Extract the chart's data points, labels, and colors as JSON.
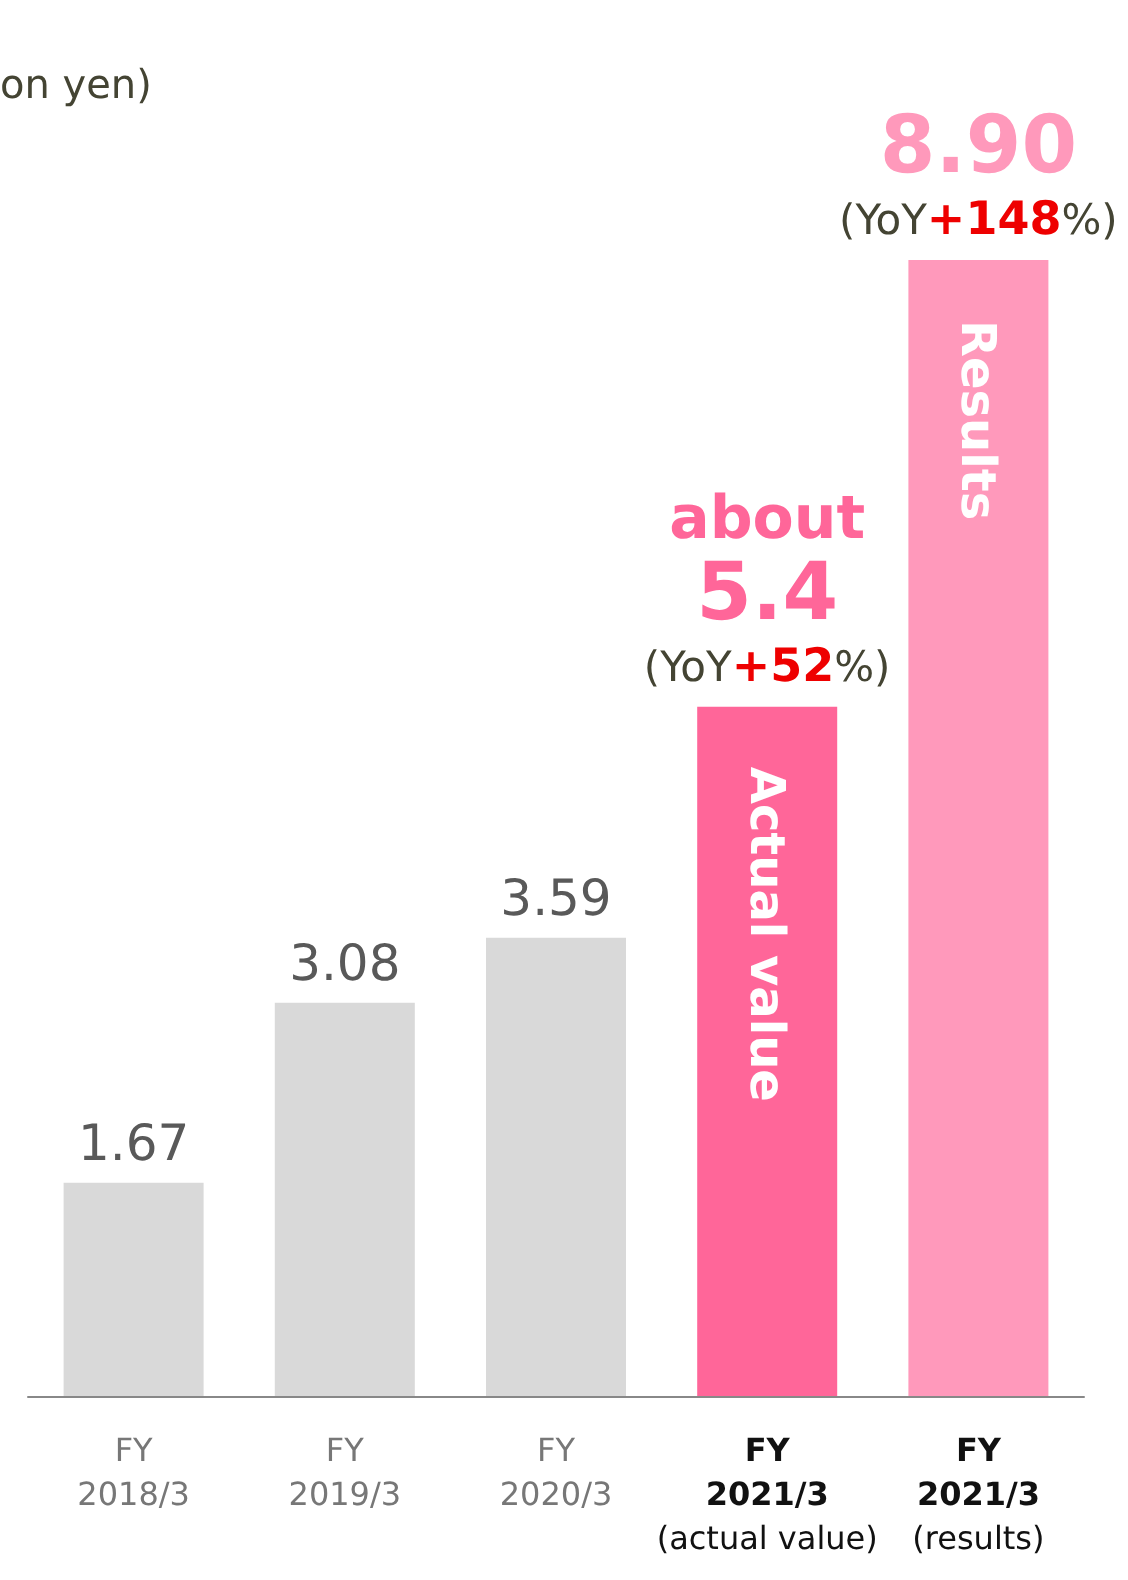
{
  "chart_data": {
    "type": "bar",
    "ylabel": "on yen)",
    "categories": [
      "FY\n2018/3",
      "FY\n2019/3",
      "FY\n2020/3",
      "FY\n2021/3\n(actual value)",
      "FY\n2021/3\n(results)"
    ],
    "values": [
      1.67,
      3.08,
      3.59,
      5.4,
      8.9
    ],
    "colors": [
      "#d9d9d9",
      "#d9d9d9",
      "#d9d9d9",
      "#ff6699",
      "#ff99bb"
    ],
    "value_labels": [
      "1.67",
      "3.08",
      "3.59",
      "about\n5.4\n(YoY+52%)",
      "8.90\n(YoY+148%)"
    ],
    "annotations": [
      "Actual value",
      "Results"
    ],
    "data_labels": false
  }
}
